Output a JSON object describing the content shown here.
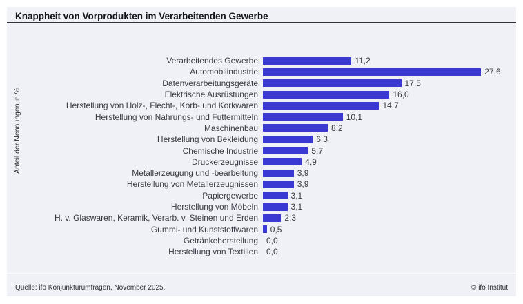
{
  "chart_data": {
    "type": "bar",
    "orientation": "horizontal",
    "title": "Knappheit von Vorprodukten im Verarbeitenden Gewerbe",
    "xlabel": "",
    "ylabel": "Anteil der Nennungen in %",
    "xlim": [
      0,
      31.5
    ],
    "grid": false,
    "legend": "none",
    "bar_color": "#3a3ad2",
    "categories": [
      "Verarbeitendes Gewerbe",
      "Automobilindustrie",
      "Datenverarbeitungsgeräte",
      "Elektrische Ausrüstungen",
      "Herstellung von Holz-, Flecht-, Korb- und Korkwaren",
      "Herstellung von Nahrungs- und Futtermitteln",
      "Maschinenbau",
      "Herstellung von Bekleidung",
      "Chemische Industrie",
      "Druckerzeugnisse",
      "Metallerzeugung und -bearbeitung",
      "Herstellung von Metallerzeugnissen",
      "Papiergewerbe",
      "Herstellung von Möbeln",
      "H. v. Glaswaren, Keramik, Verarb. v. Steinen und Erden",
      "Gummi- und Kunststoffwaren",
      "Getränkeherstellung",
      "Herstellung von Textilien"
    ],
    "values": [
      11.2,
      27.6,
      17.5,
      16.0,
      14.7,
      10.1,
      8.2,
      6.3,
      5.7,
      4.9,
      3.9,
      3.9,
      3.1,
      3.1,
      2.3,
      0.5,
      0.0,
      0.0
    ],
    "value_labels": [
      "11,2",
      "27,6",
      "17,5",
      "16,0",
      "14,7",
      "10,1",
      "8,2",
      "6,3",
      "5,7",
      "4,9",
      "3,9",
      "3,9",
      "3,1",
      "3,1",
      "2,3",
      "0,5",
      "0,0",
      "0,0"
    ]
  },
  "colors": {
    "bar": "#3a3ad2",
    "panel_background": "#eff1f7",
    "title_rule": "#30303a"
  },
  "footer": {
    "source": "Quelle: ifo Konjunkturumfragen, November 2025.",
    "copyright": "© ifo Institut"
  }
}
